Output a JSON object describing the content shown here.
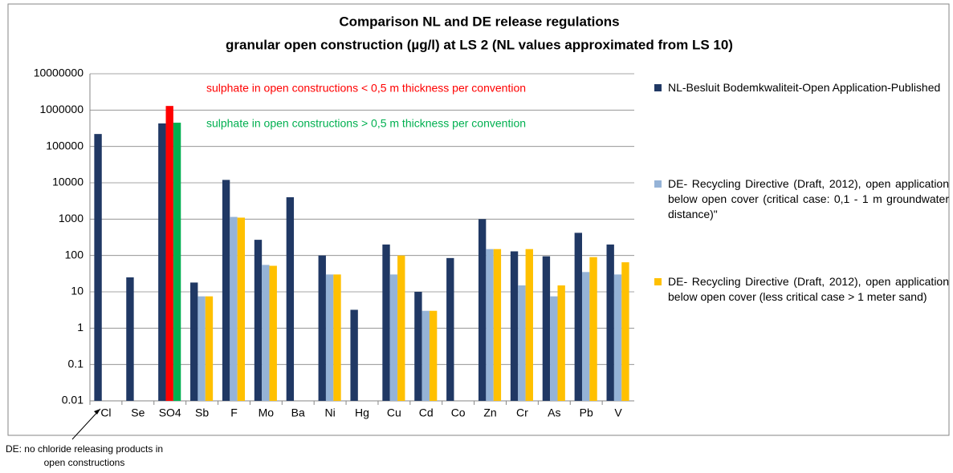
{
  "chart_data": {
    "type": "bar",
    "title": "Comparison NL and DE release regulations",
    "subtitle": "granular open construction (µg/l) at LS 2 (NL values approximated from LS 10)",
    "categories": [
      "Cl",
      "Se",
      "SO4",
      "Sb",
      "F",
      "Mo",
      "Ba",
      "Ni",
      "Hg",
      "Cu",
      "Cd",
      "Co",
      "Zn",
      "Cr",
      "As",
      "Pb",
      "V"
    ],
    "series": [
      {
        "name": "NL-Besluit Bodemkwaliteit-Open Application-Published",
        "color": "#203864",
        "values": [
          220000,
          25,
          430000,
          18,
          12000,
          270,
          4000,
          100,
          3.2,
          200,
          10,
          85,
          1000,
          130,
          95,
          420,
          200
        ]
      },
      {
        "name": "DE- Recycling Directive (Draft, 2012), open application below open cover (critical case: 0,1 - 1 m groundwater distance)\"",
        "color": "#95b3d7",
        "point_colors": {
          "2": "#ff0000"
        },
        "values": [
          null,
          null,
          1300000,
          7.5,
          1150,
          55,
          null,
          30,
          null,
          30,
          3,
          null,
          150,
          15,
          7.5,
          35,
          30
        ]
      },
      {
        "name": "DE- Recycling Directive (Draft, 2012), open application below open cover (less critical case > 1 meter sand)",
        "color": "#ffc000",
        "point_colors": {
          "2": "#00b050"
        },
        "values": [
          null,
          null,
          450000,
          7.5,
          1100,
          52,
          null,
          30,
          null,
          100,
          3,
          null,
          150,
          150,
          15,
          90,
          65
        ]
      }
    ],
    "ylim": [
      0.01,
      10000000
    ],
    "yticks": [
      0.01,
      0.1,
      1,
      10,
      100,
      1000,
      10000,
      100000,
      1000000,
      10000000
    ],
    "log_scale": true,
    "grid": true,
    "legend": "right",
    "annotations": [
      {
        "text": "sulphate in open constructions < 0,5 m thickness per convention",
        "color": "#ff0000"
      },
      {
        "text": "sulphate in open constructions > 0,5 m thickness per convention",
        "color": "#00b050"
      },
      {
        "text": "DE: no chloride releasing products in open constructions",
        "color": "#000000"
      }
    ]
  }
}
